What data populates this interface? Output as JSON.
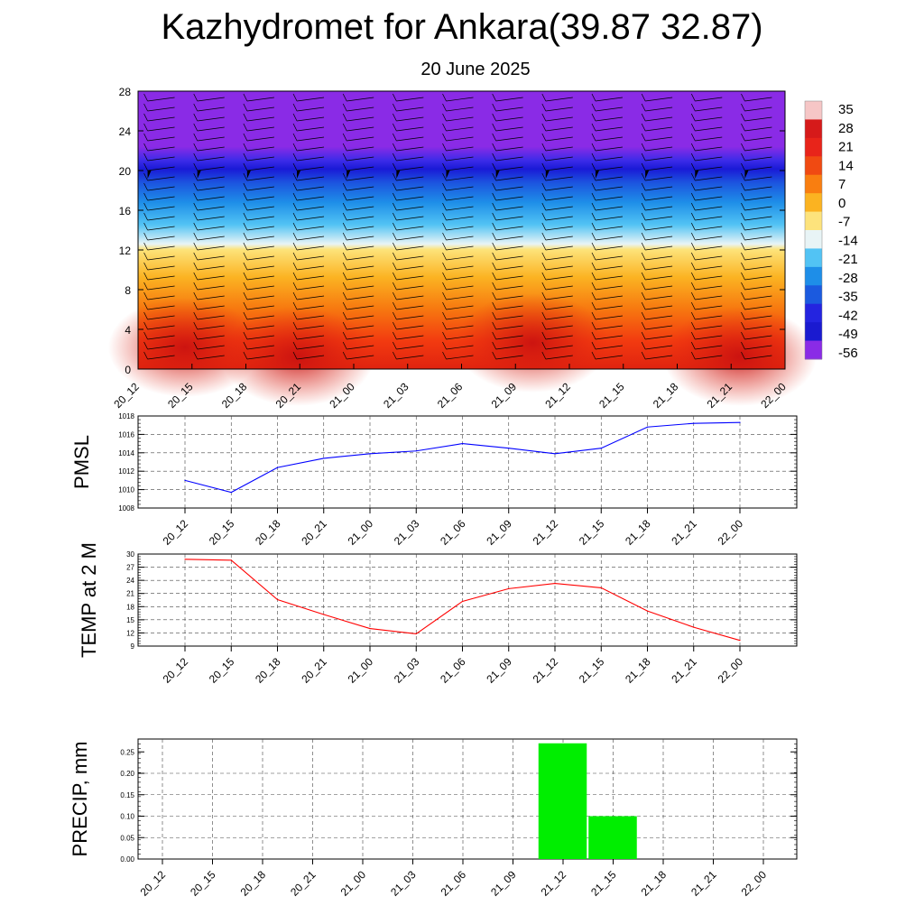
{
  "title": "Kazhydromet for Ankara(39.87 32.87)",
  "subtitle": "20 June 2025",
  "time_labels": [
    "20_12",
    "20_15",
    "20_18",
    "20_21",
    "21_00",
    "21_03",
    "21_06",
    "21_09",
    "21_12",
    "21_15",
    "21_18",
    "21_21",
    "22_00"
  ],
  "chart_data": [
    {
      "type": "heatmap",
      "ylim": [
        0,
        28
      ],
      "yticks": [
        0,
        4,
        8,
        12,
        16,
        20,
        24,
        28
      ],
      "xticks": [
        "20_12",
        "20_15",
        "20_18",
        "20_21",
        "21_00",
        "21_03",
        "21_06",
        "21_09",
        "21_12",
        "21_15",
        "21_18",
        "21_21",
        "22_00"
      ],
      "colorbar": {
        "labels": [
          "35",
          "28",
          "21",
          "14",
          "7",
          "0",
          "-7",
          "-14",
          "-21",
          "-28",
          "-35",
          "-42",
          "-49",
          "-56"
        ],
        "colors": [
          "#f6c6c6",
          "#d61a1a",
          "#e8241a",
          "#f04a12",
          "#f97e10",
          "#fbb321",
          "#fde37c",
          "#e8f4f6",
          "#52c3f4",
          "#1e8ee8",
          "#1b5adf",
          "#2424e0",
          "#1a1ad0",
          "#8a2be6"
        ]
      }
    },
    {
      "type": "line",
      "ylabel": "PMSL",
      "ylim": [
        1008,
        1018
      ],
      "yticks": [
        1008,
        1010,
        1012,
        1014,
        1016,
        1018
      ],
      "x": [
        "20_12",
        "20_15",
        "20_18",
        "20_21",
        "21_00",
        "21_03",
        "21_06",
        "21_09",
        "21_12",
        "21_15",
        "21_18",
        "21_21",
        "22_00"
      ],
      "series": [
        {
          "values": [
            1011.0,
            1009.7,
            1012.4,
            1013.4,
            1013.9,
            1014.2,
            1015.0,
            1014.5,
            1013.9,
            1014.5,
            1016.8,
            1017.2,
            1017.3
          ],
          "color": "#0000ff"
        }
      ]
    },
    {
      "type": "line",
      "ylabel": "TEMP at 2 M",
      "ylim": [
        9,
        30
      ],
      "yticks": [
        9,
        12,
        15,
        18,
        21,
        24,
        27,
        30
      ],
      "x": [
        "20_12",
        "20_15",
        "20_18",
        "20_21",
        "21_00",
        "21_03",
        "21_06",
        "21_09",
        "21_12",
        "21_15",
        "21_18",
        "21_21",
        "22_00"
      ],
      "series": [
        {
          "values": [
            28.8,
            28.6,
            19.6,
            16.2,
            13.0,
            11.8,
            19.2,
            22.1,
            23.3,
            22.3,
            17.0,
            13.3,
            10.3
          ],
          "color": "#ff0000"
        }
      ]
    },
    {
      "type": "bar",
      "ylabel": "PRECIP, mm",
      "ylim": [
        0,
        0.28
      ],
      "yticks": [
        "0.00",
        "0.05",
        "0.10",
        "0.15",
        "0.20",
        "0.25"
      ],
      "x": [
        "20_12",
        "20_15",
        "20_18",
        "20_21",
        "21_00",
        "21_03",
        "21_06",
        "21_09",
        "21_12",
        "21_15",
        "21_18",
        "21_21",
        "22_00"
      ],
      "values": [
        0,
        0,
        0,
        0,
        0,
        0,
        0,
        0,
        0.27,
        0.1,
        0,
        0,
        0
      ],
      "color": "#00ee00"
    }
  ]
}
